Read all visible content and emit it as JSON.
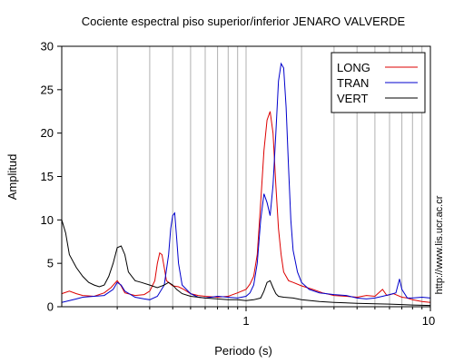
{
  "chart_data": {
    "type": "line",
    "title": "Cociente espectral piso superior/inferior  JENARO VALVERDE",
    "xlabel": "Periodo (s)",
    "ylabel": "Amplitud",
    "xscale": "log",
    "xlim": [
      0.1,
      10
    ],
    "ylim": [
      0,
      30
    ],
    "xticks": [
      1,
      10
    ],
    "yticks": [
      0,
      5,
      10,
      15,
      20,
      25,
      30
    ],
    "legend_position": "top-right",
    "credit": "http://www.lis.ucr.ac.cr",
    "series": [
      {
        "name": "LONG",
        "color": "#dd0000",
        "points": [
          [
            0.1,
            1.5
          ],
          [
            0.11,
            1.8
          ],
          [
            0.12,
            1.5
          ],
          [
            0.13,
            1.3
          ],
          [
            0.15,
            1.2
          ],
          [
            0.17,
            1.6
          ],
          [
            0.185,
            2.2
          ],
          [
            0.2,
            3.0
          ],
          [
            0.21,
            2.4
          ],
          [
            0.22,
            1.6
          ],
          [
            0.25,
            1.3
          ],
          [
            0.28,
            1.4
          ],
          [
            0.3,
            1.8
          ],
          [
            0.32,
            3.0
          ],
          [
            0.33,
            5.0
          ],
          [
            0.34,
            6.2
          ],
          [
            0.35,
            6.0
          ],
          [
            0.36,
            4.5
          ],
          [
            0.37,
            3.0
          ],
          [
            0.4,
            2.4
          ],
          [
            0.43,
            2.3
          ],
          [
            0.46,
            2.0
          ],
          [
            0.5,
            1.5
          ],
          [
            0.55,
            1.3
          ],
          [
            0.6,
            1.2
          ],
          [
            0.7,
            1.1
          ],
          [
            0.8,
            1.2
          ],
          [
            0.9,
            1.6
          ],
          [
            1.0,
            2.0
          ],
          [
            1.05,
            2.6
          ],
          [
            1.1,
            3.5
          ],
          [
            1.15,
            6.0
          ],
          [
            1.2,
            12.0
          ],
          [
            1.25,
            18.0
          ],
          [
            1.3,
            21.5
          ],
          [
            1.35,
            22.5
          ],
          [
            1.4,
            20.0
          ],
          [
            1.45,
            14.0
          ],
          [
            1.5,
            9.0
          ],
          [
            1.55,
            6.0
          ],
          [
            1.6,
            4.0
          ],
          [
            1.7,
            3.0
          ],
          [
            1.8,
            2.8
          ],
          [
            2.0,
            2.4
          ],
          [
            2.3,
            2.0
          ],
          [
            2.6,
            1.6
          ],
          [
            3.0,
            1.3
          ],
          [
            3.5,
            1.2
          ],
          [
            4.0,
            1.1
          ],
          [
            4.5,
            1.3
          ],
          [
            5.0,
            1.2
          ],
          [
            5.5,
            2.0
          ],
          [
            5.8,
            1.3
          ],
          [
            6.3,
            1.5
          ],
          [
            7.0,
            1.1
          ],
          [
            7.5,
            1.0
          ],
          [
            8.0,
            0.8
          ],
          [
            9.0,
            0.6
          ],
          [
            10.0,
            0.5
          ]
        ]
      },
      {
        "name": "TRAN",
        "color": "#0000cc",
        "points": [
          [
            0.1,
            0.5
          ],
          [
            0.11,
            0.7
          ],
          [
            0.12,
            0.9
          ],
          [
            0.13,
            1.1
          ],
          [
            0.15,
            1.2
          ],
          [
            0.17,
            1.3
          ],
          [
            0.19,
            2.0
          ],
          [
            0.2,
            2.8
          ],
          [
            0.21,
            2.5
          ],
          [
            0.22,
            1.8
          ],
          [
            0.25,
            1.1
          ],
          [
            0.28,
            0.9
          ],
          [
            0.3,
            0.8
          ],
          [
            0.33,
            1.2
          ],
          [
            0.36,
            2.5
          ],
          [
            0.38,
            6.0
          ],
          [
            0.39,
            9.0
          ],
          [
            0.4,
            10.5
          ],
          [
            0.41,
            10.8
          ],
          [
            0.42,
            8.0
          ],
          [
            0.43,
            5.0
          ],
          [
            0.45,
            2.5
          ],
          [
            0.5,
            1.5
          ],
          [
            0.55,
            1.1
          ],
          [
            0.6,
            1.0
          ],
          [
            0.7,
            1.2
          ],
          [
            0.8,
            1.1
          ],
          [
            0.9,
            1.0
          ],
          [
            1.0,
            1.2
          ],
          [
            1.05,
            1.6
          ],
          [
            1.1,
            2.5
          ],
          [
            1.15,
            5.0
          ],
          [
            1.2,
            10.0
          ],
          [
            1.25,
            13.0
          ],
          [
            1.3,
            12.0
          ],
          [
            1.35,
            10.5
          ],
          [
            1.4,
            14.0
          ],
          [
            1.45,
            20.0
          ],
          [
            1.5,
            26.0
          ],
          [
            1.55,
            28.0
          ],
          [
            1.6,
            27.5
          ],
          [
            1.65,
            23.0
          ],
          [
            1.7,
            16.0
          ],
          [
            1.75,
            10.0
          ],
          [
            1.8,
            6.5
          ],
          [
            1.9,
            4.0
          ],
          [
            2.0,
            2.8
          ],
          [
            2.2,
            2.0
          ],
          [
            2.5,
            1.6
          ],
          [
            3.0,
            1.4
          ],
          [
            3.5,
            1.3
          ],
          [
            4.0,
            1.0
          ],
          [
            4.5,
            0.9
          ],
          [
            5.0,
            1.0
          ],
          [
            5.5,
            1.2
          ],
          [
            6.0,
            1.4
          ],
          [
            6.5,
            1.6
          ],
          [
            6.8,
            3.2
          ],
          [
            7.0,
            2.0
          ],
          [
            7.5,
            1.0
          ],
          [
            8.0,
            1.0
          ],
          [
            9.0,
            1.1
          ],
          [
            10.0,
            1.0
          ]
        ]
      },
      {
        "name": "VERT",
        "color": "#000000",
        "points": [
          [
            0.1,
            10.0
          ],
          [
            0.105,
            8.5
          ],
          [
            0.11,
            6.0
          ],
          [
            0.12,
            4.5
          ],
          [
            0.13,
            3.5
          ],
          [
            0.14,
            2.8
          ],
          [
            0.15,
            2.5
          ],
          [
            0.16,
            2.3
          ],
          [
            0.17,
            2.5
          ],
          [
            0.18,
            3.5
          ],
          [
            0.19,
            5.0
          ],
          [
            0.2,
            6.8
          ],
          [
            0.21,
            7.0
          ],
          [
            0.22,
            6.0
          ],
          [
            0.23,
            4.0
          ],
          [
            0.25,
            3.0
          ],
          [
            0.27,
            2.8
          ],
          [
            0.3,
            2.5
          ],
          [
            0.33,
            2.2
          ],
          [
            0.36,
            2.5
          ],
          [
            0.38,
            2.8
          ],
          [
            0.4,
            2.5
          ],
          [
            0.42,
            2.0
          ],
          [
            0.45,
            1.5
          ],
          [
            0.5,
            1.2
          ],
          [
            0.6,
            1.0
          ],
          [
            0.7,
            0.9
          ],
          [
            0.8,
            0.8
          ],
          [
            0.9,
            0.8
          ],
          [
            1.0,
            0.7
          ],
          [
            1.1,
            0.8
          ],
          [
            1.2,
            1.0
          ],
          [
            1.25,
            1.8
          ],
          [
            1.3,
            2.8
          ],
          [
            1.35,
            3.0
          ],
          [
            1.4,
            2.2
          ],
          [
            1.45,
            1.5
          ],
          [
            1.5,
            1.2
          ],
          [
            1.6,
            1.1
          ],
          [
            1.8,
            1.0
          ],
          [
            2.0,
            0.8
          ],
          [
            2.5,
            0.6
          ],
          [
            3.0,
            0.5
          ],
          [
            4.0,
            0.4
          ],
          [
            5.0,
            0.35
          ],
          [
            6.0,
            0.3
          ],
          [
            7.0,
            0.25
          ],
          [
            8.0,
            0.2
          ],
          [
            10.0,
            0.15
          ]
        ]
      }
    ]
  }
}
